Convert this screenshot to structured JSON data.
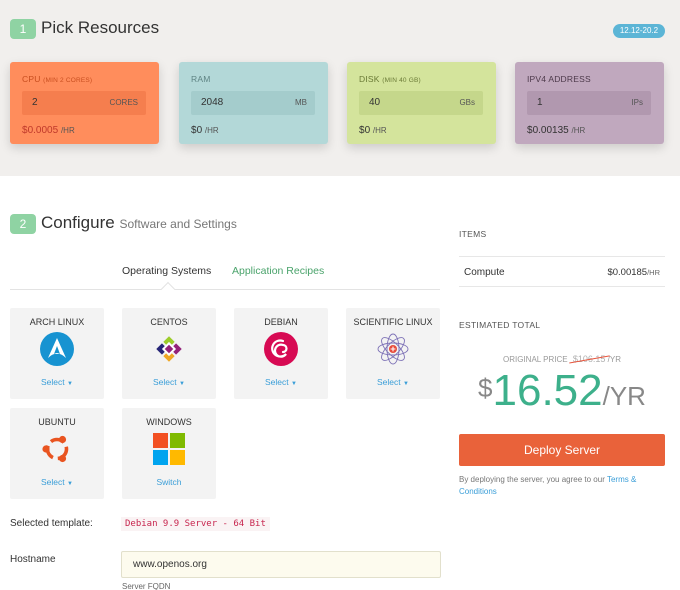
{
  "section1": {
    "step": "1",
    "title": "Pick Resources",
    "version_badge": "12.12-20.2",
    "cards": [
      {
        "label": "CPU",
        "note": "(MIN 2 CORES)",
        "value": "2",
        "unit": "CORES",
        "price_prefix": "$",
        "price": "0.0005",
        "price_suffix": "/HR",
        "color": "#ff8d5c",
        "input_bg": "#f57e4e",
        "label_color": "#c84e1f",
        "price_color": "#c0392b"
      },
      {
        "label": "RAM",
        "note": "",
        "value": "2048",
        "unit": "MB",
        "price_prefix": "$",
        "price": "0",
        "price_suffix": "/HR",
        "color": "#b3d8d8",
        "input_bg": "#a4cccc",
        "label_color": "#5f8484",
        "price_color": "#333333"
      },
      {
        "label": "DISK",
        "note": "(MIN 40 GB)",
        "value": "40",
        "unit": "GBs",
        "price_prefix": "$",
        "price": "0",
        "price_suffix": "/HR",
        "color": "#d4e49c",
        "input_bg": "#c5d78b",
        "label_color": "#6a7a36",
        "price_color": "#333333"
      },
      {
        "label": "IPV4 ADDRESS",
        "note": "",
        "value": "1",
        "unit": "IPs",
        "price_prefix": "$",
        "price": "0.00135",
        "price_suffix": "/HR",
        "color": "#c0a8be",
        "input_bg": "#b198af",
        "label_color": "#4d3a4b",
        "price_color": "#333333"
      }
    ]
  },
  "section2": {
    "step": "2",
    "title": "Configure",
    "subtitle": "Software and Settings",
    "tabs": [
      {
        "label": "Operating Systems",
        "active": true
      },
      {
        "label": "Application Recipes",
        "active": false
      }
    ],
    "os_cards": [
      {
        "name": "ARCH LINUX",
        "action": "Select",
        "icon": "arch-linux-icon",
        "dropdown": true
      },
      {
        "name": "CENTOS",
        "action": "Select",
        "icon": "centos-icon",
        "dropdown": true
      },
      {
        "name": "DEBIAN",
        "action": "Select",
        "icon": "debian-icon",
        "dropdown": true
      },
      {
        "name": "SCIENTIFIC LINUX",
        "action": "Select",
        "icon": "scientific-linux-icon",
        "dropdown": true
      },
      {
        "name": "UBUNTU",
        "action": "Select",
        "icon": "ubuntu-icon",
        "dropdown": true
      },
      {
        "name": "WINDOWS",
        "action": "Switch",
        "icon": "windows-icon",
        "dropdown": false
      }
    ],
    "selected_template_label": "Selected template:",
    "selected_template": "Debian 9.9 Server - 64 Bit",
    "hostname_label": "Hostname",
    "hostname_value": "www.openos.org",
    "hostname_help": "Server FQDN"
  },
  "sidebar": {
    "items_heading": "ITEMS",
    "item_name": "Compute",
    "item_price": "$0.00185",
    "item_price_suffix": "/HR",
    "estimated_heading": "ESTIMATED TOTAL",
    "original_price_label": "ORIGINAL PRICE",
    "original_price": "$106.15",
    "original_price_suffix": "/YR",
    "total_currency": "$",
    "total_amount": "16.52",
    "total_suffix": "/YR",
    "deploy_label": "Deploy Server",
    "terms_text": "By deploying the server, you agree to our ",
    "terms_link": "Terms & Conditions"
  },
  "colors": {
    "accent_green": "#3db08b",
    "deploy_orange": "#e9623a",
    "link_blue": "#3a9ed8"
  }
}
